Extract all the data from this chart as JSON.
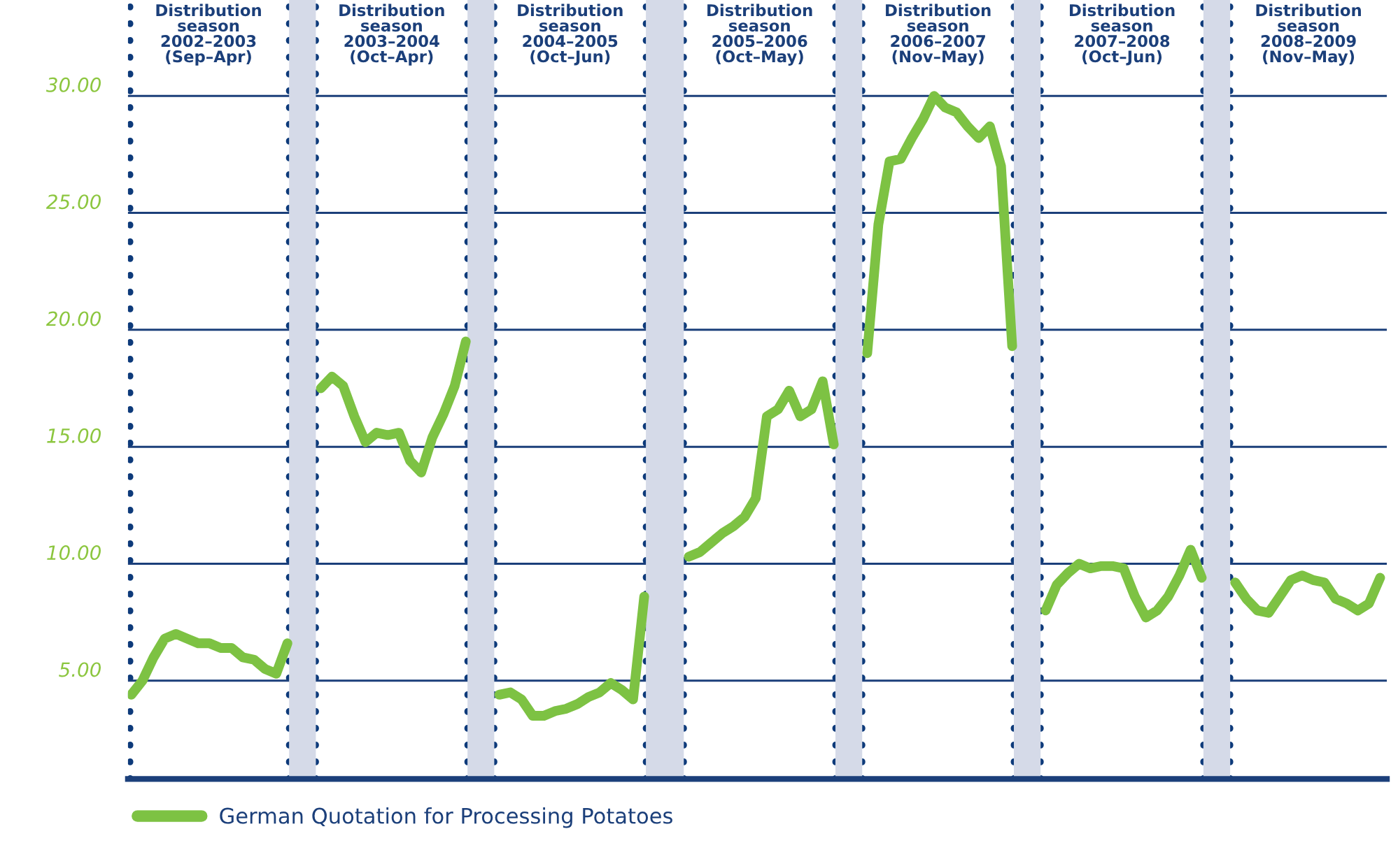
{
  "chart_data": {
    "type": "line",
    "categories": [
      null,
      null,
      null,
      null,
      null,
      null,
      null,
      null,
      null,
      null,
      null,
      null,
      null,
      null,
      null,
      null,
      null,
      null,
      null,
      null,
      null,
      null,
      null,
      null,
      null,
      null,
      null,
      null,
      null,
      null,
      null,
      null,
      null,
      null,
      null,
      null,
      null,
      null,
      null,
      null,
      null,
      null,
      null,
      null,
      null,
      null,
      null,
      null,
      null,
      null,
      null,
      null,
      null,
      null,
      null,
      null,
      null,
      null,
      null,
      null,
      null,
      null,
      null,
      null,
      null,
      null,
      null,
      null,
      null,
      null,
      null,
      null,
      null,
      null,
      null,
      null,
      null,
      null,
      null,
      null,
      null,
      null,
      null,
      null,
      null,
      null,
      null,
      null,
      null,
      null,
      null,
      null,
      null,
      null,
      null,
      null,
      null,
      null,
      null,
      null,
      null,
      null,
      null,
      null,
      null,
      null,
      null,
      null,
      null,
      null,
      null,
      null,
      null
    ],
    "series": [
      {
        "name": "German Quotation for Processing Potatoes",
        "color": "#7dc243",
        "values": [
          4.4,
          5.0,
          6.0,
          6.8,
          7.0,
          6.8,
          6.6,
          6.6,
          6.4,
          6.4,
          6.0,
          5.9,
          5.5,
          5.3,
          6.6,
          null,
          null,
          17.5,
          18.0,
          17.6,
          16.3,
          15.2,
          15.6,
          15.5,
          15.6,
          14.4,
          13.9,
          15.4,
          16.4,
          17.6,
          19.5,
          null,
          null,
          4.4,
          4.5,
          4.2,
          3.5,
          3.5,
          3.7,
          3.8,
          4.0,
          4.3,
          4.5,
          4.9,
          4.6,
          4.2,
          8.6,
          null,
          null,
          null,
          10.3,
          10.5,
          10.9,
          11.3,
          11.6,
          12.0,
          12.8,
          16.3,
          16.6,
          17.4,
          16.3,
          16.6,
          17.8,
          15.1,
          null,
          null,
          19.0,
          24.5,
          27.2,
          27.3,
          28.2,
          29.0,
          30.0,
          29.5,
          29.3,
          28.7,
          28.2,
          28.7,
          27.0,
          19.3,
          null,
          null,
          8.0,
          9.1,
          9.6,
          10.0,
          9.8,
          9.9,
          9.9,
          9.8,
          8.6,
          7.7,
          8.0,
          8.6,
          9.5,
          10.6,
          9.4,
          null,
          null,
          9.2,
          8.5,
          8.0,
          7.9,
          8.6,
          9.3,
          9.5,
          9.3,
          9.2,
          8.5,
          8.3,
          8.0,
          8.3,
          9.4
        ]
      }
    ],
    "ylim": [
      0.8,
      34.1
    ],
    "yticks": [
      {
        "value": 5,
        "label": "5.00"
      },
      {
        "value": 10,
        "label": "10.00"
      },
      {
        "value": 15,
        "label": "15.00"
      },
      {
        "value": 20,
        "label": "20.00"
      },
      {
        "value": 25,
        "label": "25.00"
      },
      {
        "value": 30,
        "label": "30.00"
      }
    ],
    "tick_labels": "y",
    "grid": true,
    "legend": "bottom",
    "marker": "none",
    "line_style": "solid",
    "annotations": [
      "Distribution\nseason\n2002–2003\n(Sep–Apr)",
      "Distribution\nseason\n2003–2004\n(Oct–Apr)",
      "Distribution\nseason\n2004–2005\n(Oct–Jun)",
      "Distribution\nseason\n2005–2006\n(Oct–May)",
      "Distribution\nseason\n2006–2007\n(Nov–May)",
      "Distribution\nseason\n2007–2008\n(Oct–Jun)",
      "Distribution\nseason\n2008–2009\n(Nov–May)"
    ]
  }
}
